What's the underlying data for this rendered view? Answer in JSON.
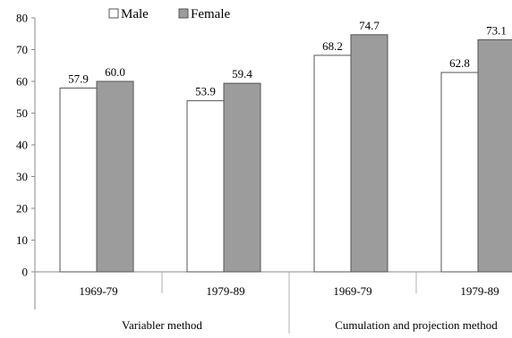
{
  "chart_data": {
    "type": "bar",
    "title": "",
    "xlabel": "",
    "ylabel": "",
    "ylim": [
      0,
      80
    ],
    "yticks": [
      0,
      10,
      20,
      30,
      40,
      50,
      60,
      70,
      80
    ],
    "grid": false,
    "legend_position": "top-left",
    "categories": [
      "1969-79",
      "1979-89",
      "1969-79",
      "1979-89"
    ],
    "groups": [
      {
        "label": "Variabler method",
        "span": [
          0,
          1
        ]
      },
      {
        "label": "Cumulation and projection method",
        "span": [
          2,
          3
        ]
      }
    ],
    "series": [
      {
        "name": "Male",
        "values": [
          57.9,
          53.9,
          68.2,
          62.8
        ],
        "labels": [
          "57.9",
          "53.9",
          "68.2",
          "62.8"
        ],
        "color": "#ffffff"
      },
      {
        "name": "Female",
        "values": [
          60.0,
          59.4,
          74.7,
          73.1
        ],
        "labels": [
          "60.0",
          "59.4",
          "74.7",
          "73.1"
        ],
        "color": "#9c9c9c"
      }
    ]
  }
}
